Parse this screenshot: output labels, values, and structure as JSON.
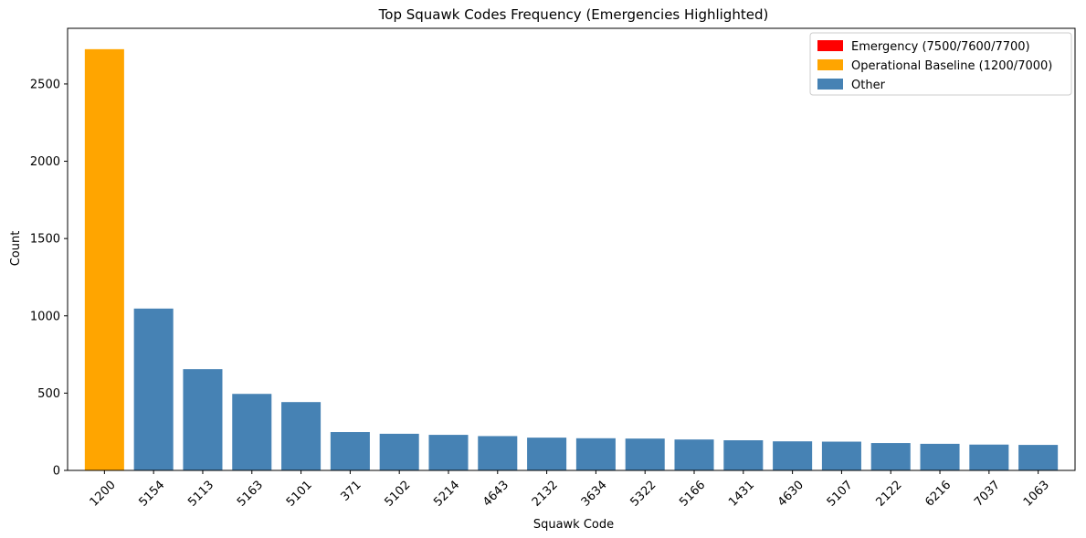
{
  "chart_data": {
    "type": "bar",
    "title": "Top Squawk Codes Frequency (Emergencies Highlighted)",
    "xlabel": "Squawk Code",
    "ylabel": "Count",
    "ylim": [
      0,
      2860
    ],
    "yticks": [
      0,
      500,
      1000,
      1500,
      2000,
      2500
    ],
    "grid": false,
    "legend_position": "top-right",
    "categories": [
      "1200",
      "5154",
      "5113",
      "5163",
      "5101",
      "371",
      "5102",
      "5214",
      "4643",
      "2132",
      "3634",
      "5322",
      "5166",
      "1431",
      "4630",
      "5107",
      "2122",
      "6216",
      "7037",
      "1063"
    ],
    "values": [
      2725,
      1047,
      655,
      495,
      442,
      248,
      237,
      230,
      222,
      212,
      208,
      206,
      200,
      195,
      188,
      186,
      177,
      172,
      167,
      165
    ],
    "bar_groups": [
      "baseline",
      "other",
      "other",
      "other",
      "other",
      "other",
      "other",
      "other",
      "other",
      "other",
      "other",
      "other",
      "other",
      "other",
      "other",
      "other",
      "other",
      "other",
      "other",
      "other"
    ],
    "legend": [
      {
        "key": "emergency",
        "label": "Emergency (7500/7600/7700)",
        "color": "#ff0000"
      },
      {
        "key": "baseline",
        "label": "Operational Baseline (1200/7000)",
        "color": "#ffa500"
      },
      {
        "key": "other",
        "label": "Other",
        "color": "#4682b4"
      }
    ]
  }
}
